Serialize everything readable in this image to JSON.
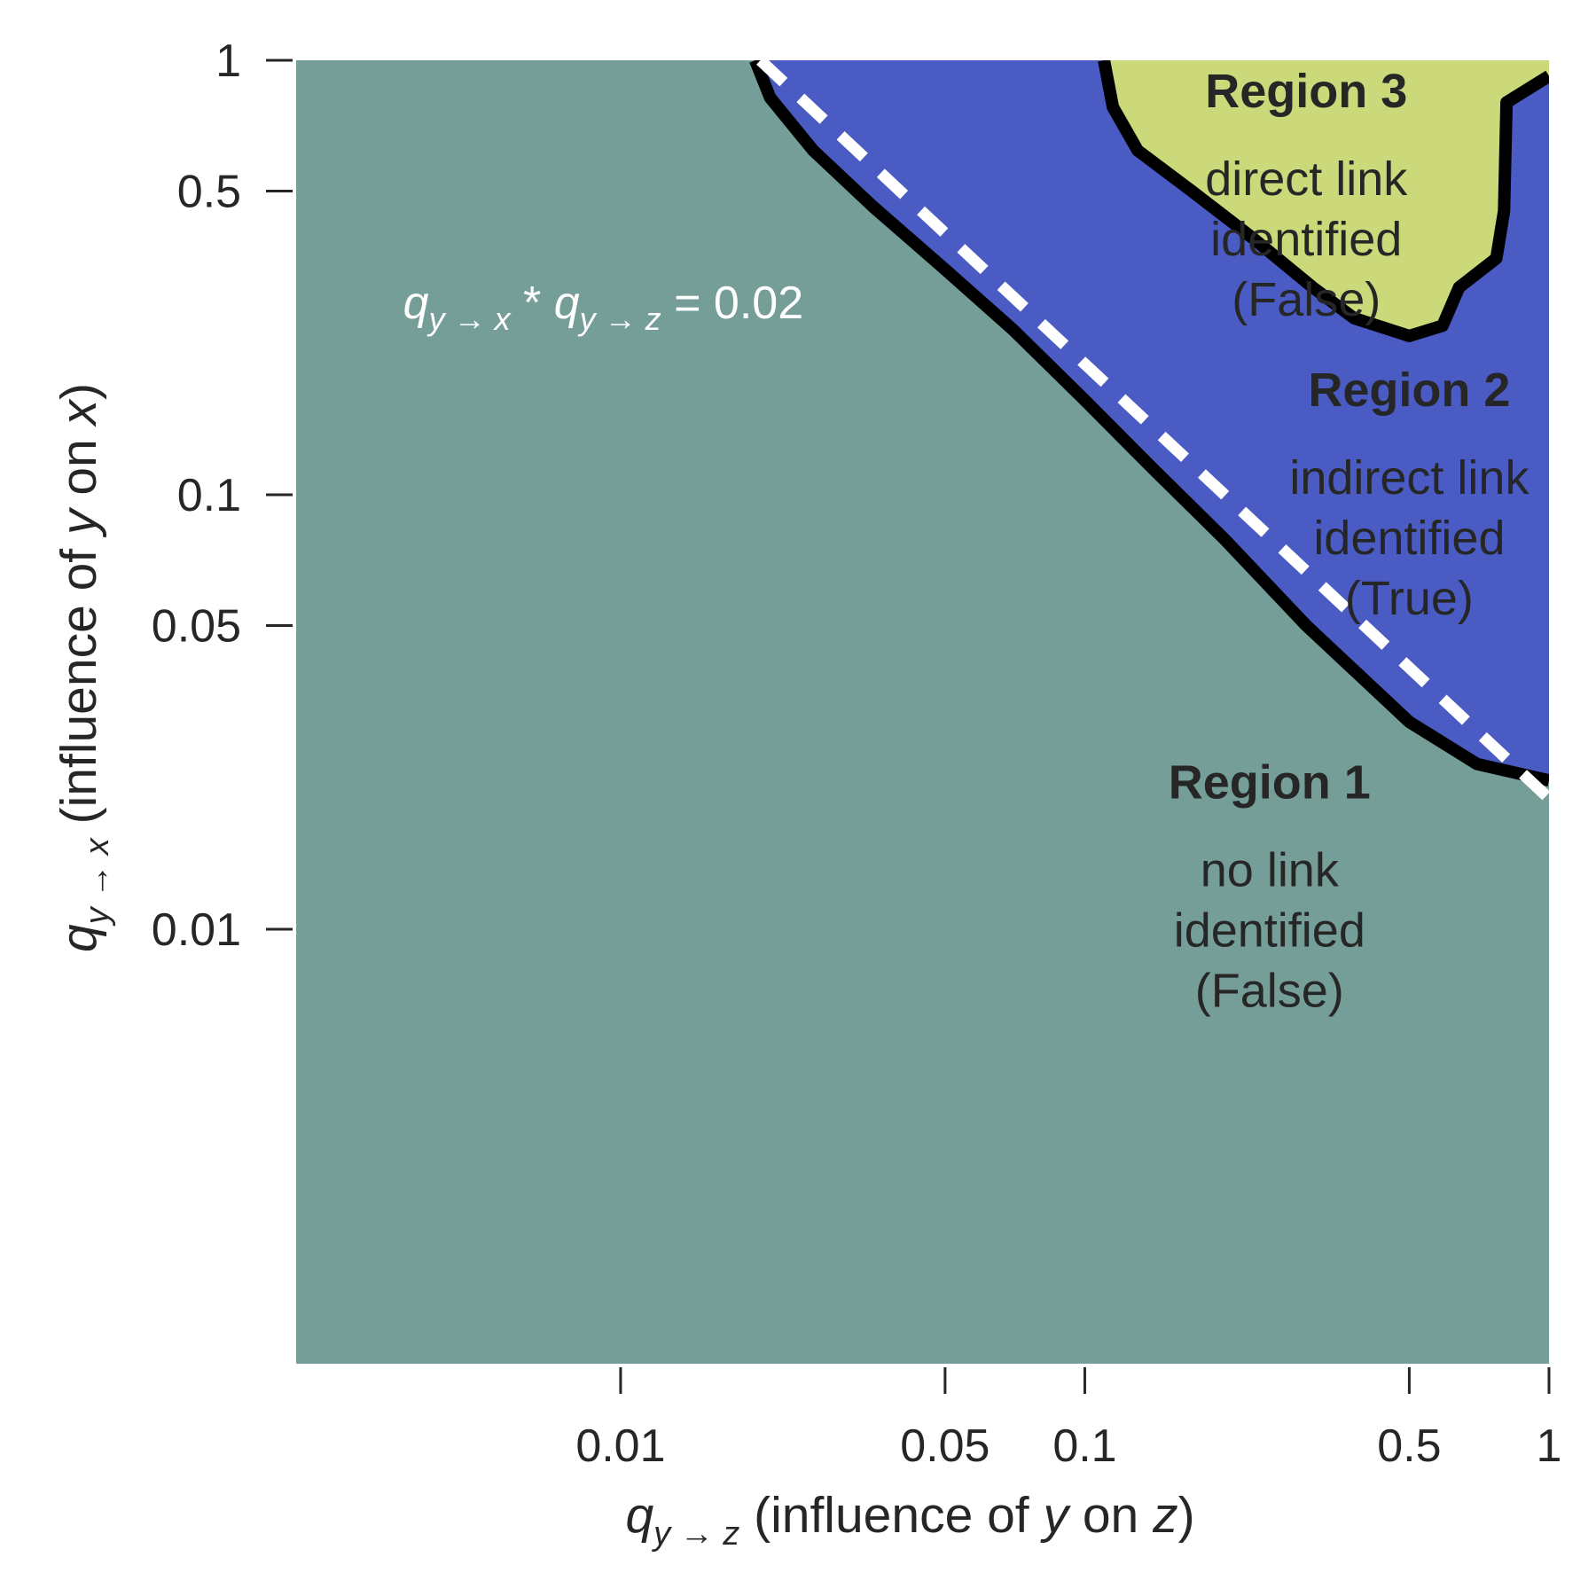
{
  "chart_data": {
    "type": "area",
    "scale": {
      "x": "log",
      "y": "log"
    },
    "xlim": [
      0.002,
      1
    ],
    "ylim": [
      0.001,
      1
    ],
    "xticks": [
      {
        "value": 0.01,
        "label": "0.01"
      },
      {
        "value": 0.05,
        "label": "0.05"
      },
      {
        "value": 0.1,
        "label": "0.1"
      },
      {
        "value": 0.5,
        "label": "0.5"
      },
      {
        "value": 1,
        "label": "1"
      }
    ],
    "yticks": [
      {
        "value": 1,
        "label": "1"
      },
      {
        "value": 0.5,
        "label": "0.5"
      },
      {
        "value": 0.1,
        "label": "0.1"
      },
      {
        "value": 0.05,
        "label": "0.05"
      },
      {
        "value": 0.01,
        "label": "0.01"
      }
    ],
    "xlabel": {
      "symbol": "q",
      "sub": "y → z",
      "text_pre": " (influence of ",
      "var": "y",
      "text_mid": " on ",
      "var2": "z",
      "text_post": ")"
    },
    "ylabel": {
      "symbol": "q",
      "sub": "y → x",
      "text_pre": " (influence of ",
      "var": "y",
      "text_mid": " on ",
      "var2": "x",
      "text_post": ")"
    },
    "colors": {
      "region1": "#759e98",
      "region2": "#4a5cc4",
      "region3": "#cbd97a",
      "boundary": "#000000",
      "reference_line": "#ffffff",
      "text": "#262626"
    },
    "regions": [
      {
        "id": "region1",
        "title": "Region 1",
        "lines": [
          "no link",
          "identified",
          "(False)"
        ],
        "anchor": [
          0.25,
          0.02
        ]
      },
      {
        "id": "region2",
        "title": "Region 2",
        "lines": [
          "indirect link",
          "identified",
          "(True)"
        ],
        "anchor": [
          0.5,
          0.16
        ]
      },
      {
        "id": "region3",
        "title": "Region 3",
        "lines": [
          "direct link",
          "identified",
          "(False)"
        ],
        "anchor": [
          0.3,
          0.78
        ]
      }
    ],
    "boundary_region2": [
      [
        0.0195,
        1.0
      ],
      [
        0.021,
        0.82
      ],
      [
        0.026,
        0.62
      ],
      [
        0.035,
        0.46
      ],
      [
        0.05,
        0.33
      ],
      [
        0.07,
        0.24
      ],
      [
        0.1,
        0.165
      ],
      [
        0.14,
        0.115
      ],
      [
        0.2,
        0.079
      ],
      [
        0.3,
        0.05
      ],
      [
        0.5,
        0.03
      ],
      [
        0.7,
        0.024
      ],
      [
        1.0,
        0.022
      ]
    ],
    "boundary_region3": [
      [
        0.11,
        1.0
      ],
      [
        0.115,
        0.78
      ],
      [
        0.13,
        0.62
      ],
      [
        0.17,
        0.5
      ],
      [
        0.23,
        0.39
      ],
      [
        0.31,
        0.3
      ],
      [
        0.38,
        0.255
      ],
      [
        0.5,
        0.232
      ],
      [
        0.59,
        0.245
      ],
      [
        0.64,
        0.3
      ],
      [
        0.77,
        0.35
      ],
      [
        0.8,
        0.45
      ],
      [
        0.81,
        0.8
      ],
      [
        1.0,
        0.92
      ]
    ],
    "reference_line": {
      "product": 0.02,
      "label": {
        "symbol": "q",
        "sub1": "y → x",
        "mid": " * ",
        "sub2": "y → z",
        "post": " = 0.02"
      },
      "anchor": [
        0.0034,
        0.255
      ]
    }
  }
}
